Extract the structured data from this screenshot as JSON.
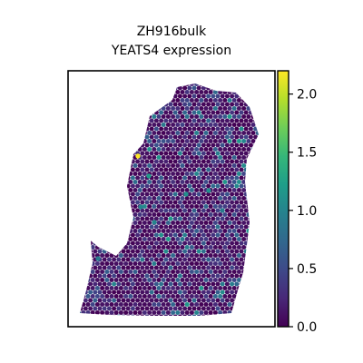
{
  "chart_data": {
    "type": "heatmap",
    "title_lines": [
      "ZH916bulk",
      "YEATS4 expression"
    ],
    "colorbar": {
      "label": "",
      "range": [
        0.0,
        2.2
      ],
      "ticks": [
        0.0,
        0.5,
        1.0,
        1.5,
        2.0
      ],
      "tick_labels": [
        "0.0",
        "0.5",
        "1.0",
        "1.5",
        "2.0"
      ],
      "colormap": "viridis",
      "colormap_stops": [
        "#440154",
        "#482878",
        "#3e4989",
        "#31688e",
        "#26828e",
        "#1f9e89",
        "#35b779",
        "#6ece58",
        "#b5de2b",
        "#fde725"
      ]
    },
    "axes": {
      "xlabel": "",
      "ylabel": "",
      "ticks_shown": false
    },
    "spots_description": "Hexagonal spatial transcriptomics spots; most near 0.0 (dark purple), scattered 0.3-1.2, one spot near 2.2",
    "highlight_spots": [
      {
        "value": 2.2
      },
      {
        "value": 1.2
      },
      {
        "value": 1.1
      },
      {
        "value": 1.1
      },
      {
        "value": 1.0
      },
      {
        "value": 1.0
      },
      {
        "value": 0.9
      },
      {
        "value": 0.9
      }
    ]
  }
}
